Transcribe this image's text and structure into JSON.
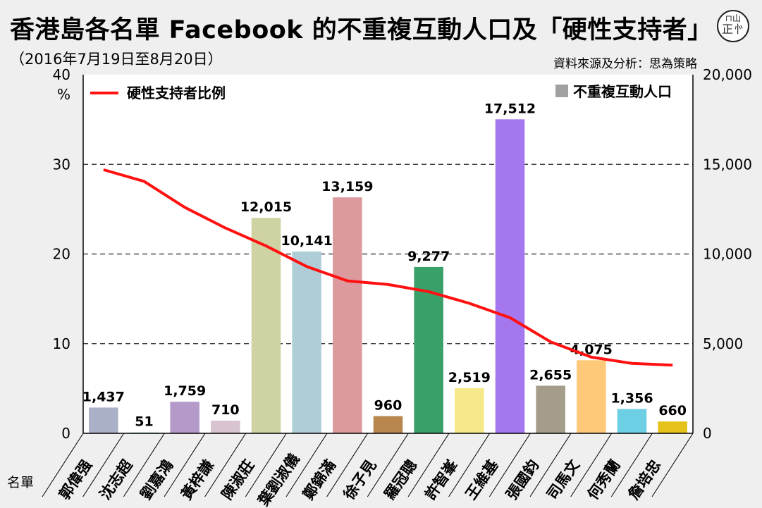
{
  "title": "香港島各名單 Facebook 的不重複互動人口及「硬性支持者」",
  "subtitle": "（2016年7月19日至8月20日）",
  "source": "資料來源及分析：思為策略",
  "logo": {
    "line1": "⊓山",
    "line2": "正㣺"
  },
  "x_axis_name": "名單",
  "chart_data": {
    "type": "bar",
    "categories": [
      "郭偉强",
      "沈志超",
      "劉嘉鴻",
      "黃梓謙",
      "陳淑莊",
      "葉劉淑儀",
      "鄭錦滿",
      "徐子見",
      "羅冠聰",
      "許智峯",
      "王維基",
      "張國鈞",
      "司馬文",
      "何秀蘭",
      "詹培忠"
    ],
    "series": [
      {
        "name": "不重複互動人口",
        "type": "bar",
        "axis": "right",
        "values": [
          1437,
          51,
          1759,
          710,
          12015,
          10141,
          13159,
          960,
          9277,
          2519,
          17512,
          2655,
          4075,
          1356,
          660
        ],
        "labels": [
          "1,437",
          "51",
          "1,759",
          "710",
          "12,015",
          "10,141",
          "13,159",
          "960",
          "9,277",
          "2,519",
          "17,512",
          "2,655",
          "4,075",
          "1,356",
          "660"
        ],
        "colors": [
          "#a9b0c8",
          "#b5e0b8",
          "#b39ac8",
          "#d8c4d0",
          "#cfd2a2",
          "#aecdd6",
          "#dc9a9f",
          "#b8874f",
          "#3aa06a",
          "#f6e889",
          "#a577ee",
          "#a59d8c",
          "#ffc97a",
          "#6ccfe4",
          "#e5c21a"
        ]
      },
      {
        "name": "硬性支持者比例",
        "type": "line",
        "axis": "left",
        "color": "#ff1111",
        "values": [
          29.4,
          28.1,
          25.2,
          22.9,
          20.9,
          18.6,
          17.0,
          16.6,
          15.8,
          14.5,
          12.9,
          10.2,
          8.5,
          7.8,
          7.6
        ]
      }
    ],
    "y_left": {
      "ticks": [
        "0",
        "10",
        "20",
        "30",
        "40"
      ],
      "unit": "%",
      "ylim": [
        0,
        40
      ]
    },
    "y_right": {
      "ticks": [
        "0",
        "5,000",
        "10,000",
        "15,000",
        "20,000"
      ],
      "ylim": [
        0,
        20000
      ]
    },
    "grid": true,
    "legend": [
      {
        "label": "硬性支持者比例",
        "kind": "line",
        "color": "#ff1111",
        "placement": "top-left"
      },
      {
        "label": "不重複互動人口",
        "kind": "box",
        "color": "#a0a0a0",
        "placement": "top-right"
      }
    ]
  }
}
